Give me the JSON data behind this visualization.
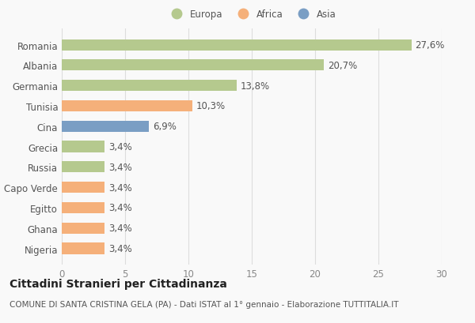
{
  "categories": [
    "Romania",
    "Albania",
    "Germania",
    "Tunisia",
    "Cina",
    "Grecia",
    "Russia",
    "Capo Verde",
    "Egitto",
    "Ghana",
    "Nigeria"
  ],
  "values": [
    27.6,
    20.7,
    13.8,
    10.3,
    6.9,
    3.4,
    3.4,
    3.4,
    3.4,
    3.4,
    3.4
  ],
  "labels": [
    "27,6%",
    "20,7%",
    "13,8%",
    "10,3%",
    "6,9%",
    "3,4%",
    "3,4%",
    "3,4%",
    "3,4%",
    "3,4%",
    "3,4%"
  ],
  "colors": [
    "#b5c98e",
    "#b5c98e",
    "#b5c98e",
    "#f5b07a",
    "#7a9ec4",
    "#b5c98e",
    "#b5c98e",
    "#f5b07a",
    "#f5b07a",
    "#f5b07a",
    "#f5b07a"
  ],
  "legend": [
    {
      "label": "Europa",
      "color": "#b5c98e"
    },
    {
      "label": "Africa",
      "color": "#f5b07a"
    },
    {
      "label": "Asia",
      "color": "#7a9ec4"
    }
  ],
  "xlim": [
    0,
    30
  ],
  "xticks": [
    0,
    5,
    10,
    15,
    20,
    25,
    30
  ],
  "title": "Cittadini Stranieri per Cittadinanza",
  "subtitle": "COMUNE DI SANTA CRISTINA GELA (PA) - Dati ISTAT al 1° gennaio - Elaborazione TUTTITALIA.IT",
  "background_color": "#f9f9f9",
  "bar_height": 0.55,
  "label_fontsize": 8.5,
  "tick_fontsize": 8.5,
  "title_fontsize": 10,
  "subtitle_fontsize": 7.5
}
